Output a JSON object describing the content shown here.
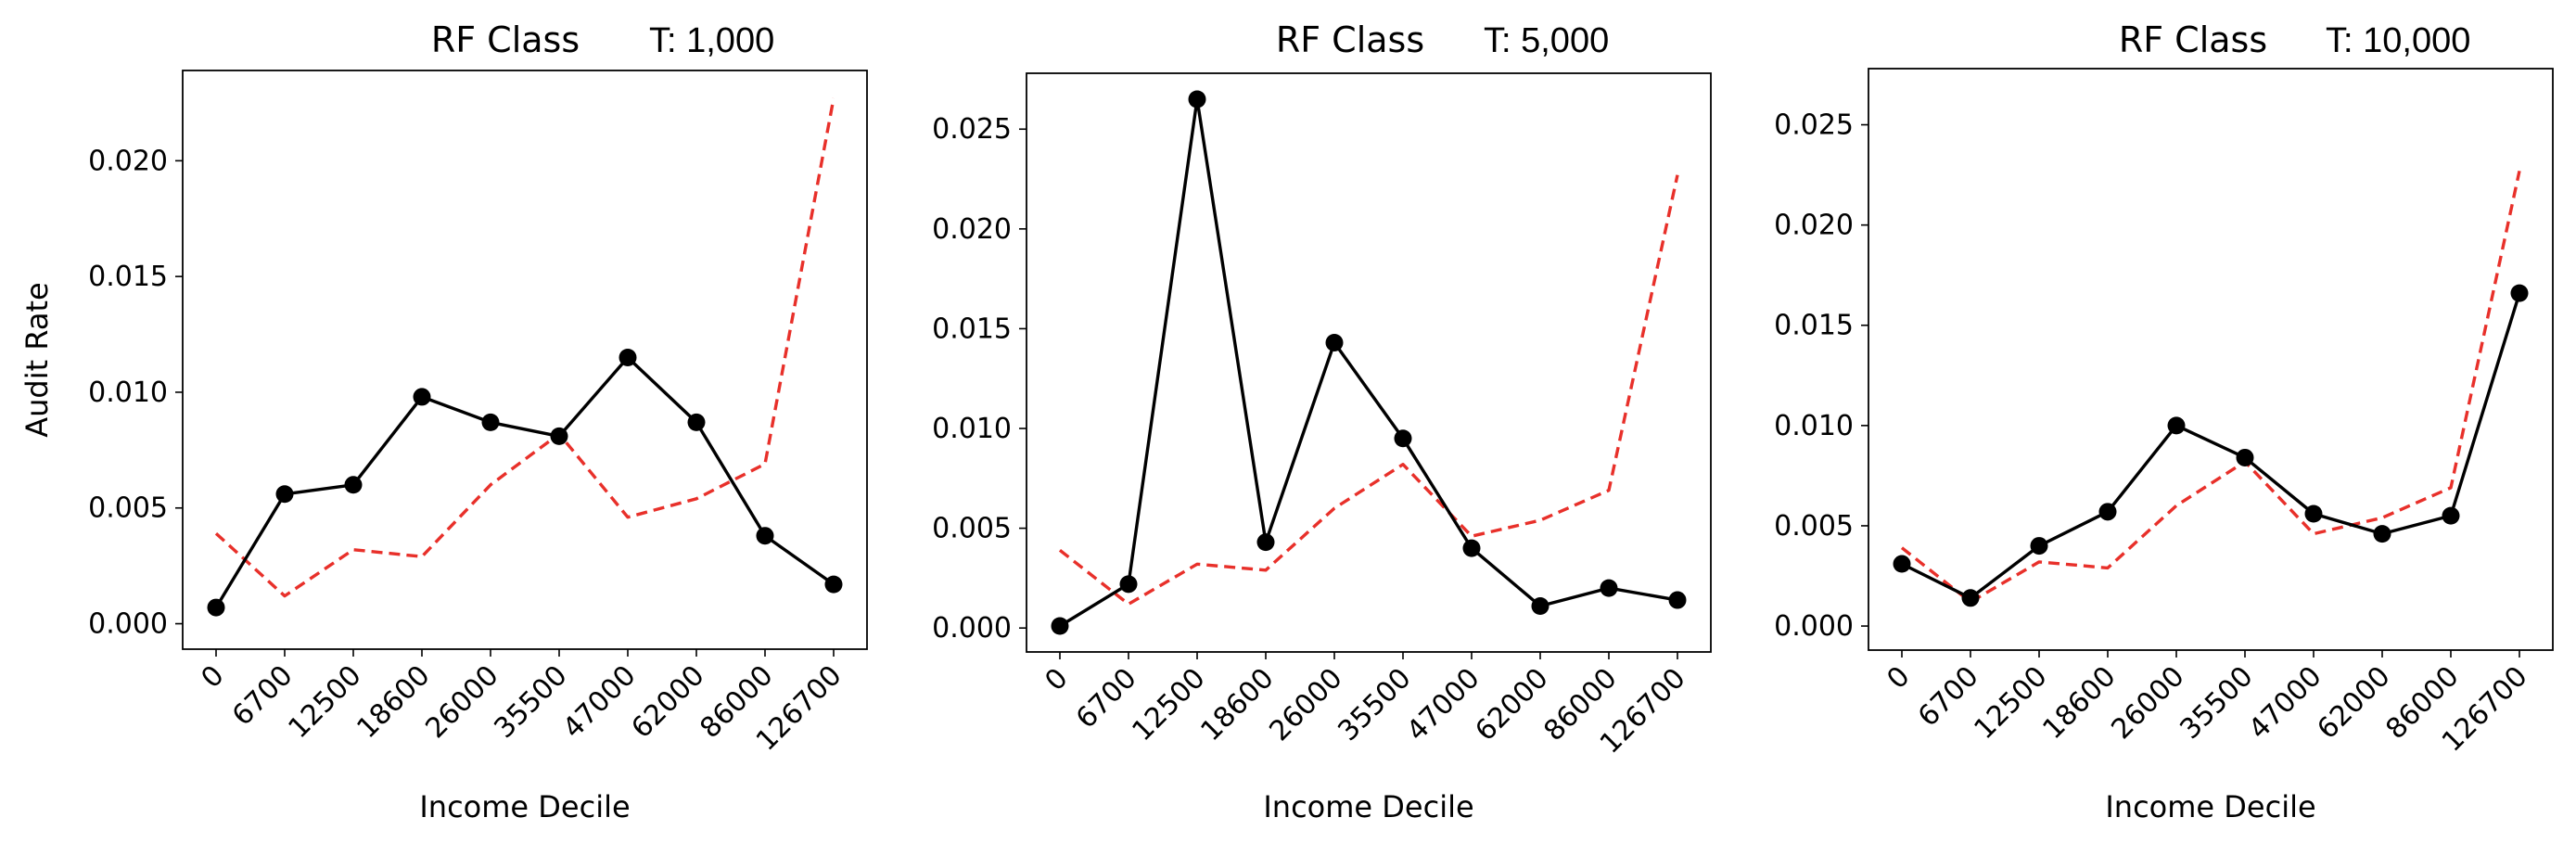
{
  "chart_data": [
    {
      "type": "line",
      "title": "RF Class",
      "title_suffix": "T: 1,000",
      "xlabel": "Income Decile",
      "ylabel": "Audit Rate",
      "categories": [
        "0",
        "6700",
        "12500",
        "18600",
        "26000",
        "35500",
        "47000",
        "62000",
        "86000",
        "126700"
      ],
      "ylim": [
        -0.0011,
        0.0239
      ],
      "yticks": [
        0.0,
        0.005,
        0.01,
        0.015,
        0.02
      ],
      "ytick_labels": [
        "0.000",
        "0.005",
        "0.010",
        "0.015",
        "0.020"
      ],
      "grid": false,
      "series": [
        {
          "style": "solid-markers",
          "color": "#000000",
          "values": [
            0.0007,
            0.0056,
            0.006,
            0.0098,
            0.0087,
            0.0081,
            0.0115,
            0.0087,
            0.0038,
            0.0017
          ]
        },
        {
          "style": "dashed",
          "color": "#e8302a",
          "values": [
            0.0039,
            0.0012,
            0.0032,
            0.0029,
            0.006,
            0.0082,
            0.0046,
            0.0054,
            0.0069,
            0.0227
          ]
        }
      ]
    },
    {
      "type": "line",
      "title": "RF Class",
      "title_suffix": "T: 5,000",
      "xlabel": "Income Decile",
      "ylabel": "",
      "categories": [
        "0",
        "6700",
        "12500",
        "18600",
        "26000",
        "35500",
        "47000",
        "62000",
        "86000",
        "126700"
      ],
      "ylim": [
        -0.0012,
        0.0278
      ],
      "yticks": [
        0.0,
        0.005,
        0.01,
        0.015,
        0.02,
        0.025
      ],
      "ytick_labels": [
        "0.000",
        "0.005",
        "0.010",
        "0.015",
        "0.020",
        "0.025"
      ],
      "grid": false,
      "series": [
        {
          "style": "solid-markers",
          "color": "#000000",
          "values": [
            0.0001,
            0.0022,
            0.0265,
            0.0043,
            0.0143,
            0.0095,
            0.004,
            0.0011,
            0.002,
            0.0014
          ]
        },
        {
          "style": "dashed",
          "color": "#e8302a",
          "values": [
            0.0039,
            0.0012,
            0.0032,
            0.0029,
            0.006,
            0.0082,
            0.0046,
            0.0054,
            0.0069,
            0.0227
          ]
        }
      ]
    },
    {
      "type": "line",
      "title": "RF Class",
      "title_suffix": "T: 10,000",
      "xlabel": "Income Decile",
      "ylabel": "",
      "categories": [
        "0",
        "6700",
        "12500",
        "18600",
        "26000",
        "35500",
        "47000",
        "62000",
        "86000",
        "126700"
      ],
      "ylim": [
        -0.0012,
        0.0278
      ],
      "yticks": [
        0.0,
        0.005,
        0.01,
        0.015,
        0.02,
        0.025
      ],
      "ytick_labels": [
        "0.000",
        "0.005",
        "0.010",
        "0.015",
        "0.020",
        "0.025"
      ],
      "grid": false,
      "series": [
        {
          "style": "solid-markers",
          "color": "#000000",
          "values": [
            0.0031,
            0.0014,
            0.004,
            0.0057,
            0.01,
            0.0084,
            0.0056,
            0.0046,
            0.0055,
            0.0166
          ]
        },
        {
          "style": "dashed",
          "color": "#e8302a",
          "values": [
            0.0039,
            0.0012,
            0.0032,
            0.0029,
            0.006,
            0.0082,
            0.0046,
            0.0054,
            0.0069,
            0.0227
          ]
        }
      ]
    }
  ]
}
